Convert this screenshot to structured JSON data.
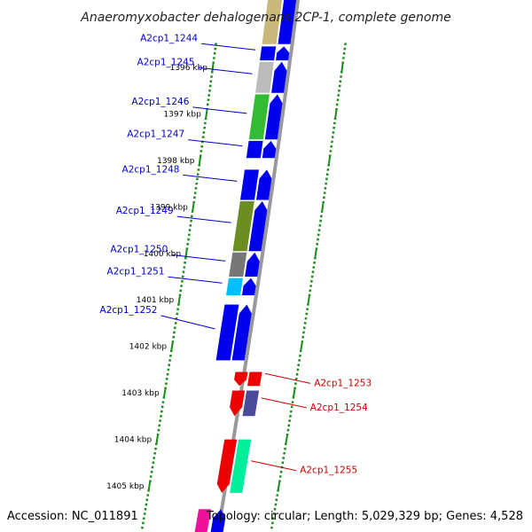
{
  "title": "Anaeromyxobacter dehalogenans 2CP-1, complete genome",
  "footer": {
    "accession": "Accession: NC_011891",
    "summary": "Topology: circular; Length: 5,029,329 bp; Genes: 4,528"
  },
  "colors": {
    "backbone": "#999999",
    "tick": "#1a8a1a",
    "forward_label": "#0000cc",
    "reverse_label": "#cc0000",
    "forward_gene": "#0000ee",
    "reverse_gene": "#ee0000"
  },
  "ticks": [
    {
      "label": "1396 kbp",
      "kbp": 1396
    },
    {
      "label": "1397 kbp",
      "kbp": 1397
    },
    {
      "label": "1398 kbp",
      "kbp": 1398
    },
    {
      "label": "1399 kbp",
      "kbp": 1399
    },
    {
      "label": "1400 kbp",
      "kbp": 1400
    },
    {
      "label": "1401 kbp",
      "kbp": 1401
    },
    {
      "label": "1402 kbp",
      "kbp": 1402
    },
    {
      "label": "1403 kbp",
      "kbp": 1403
    },
    {
      "label": "1404 kbp",
      "kbp": 1404
    },
    {
      "label": "1405 kbp",
      "kbp": 1405
    }
  ],
  "genes": [
    {
      "label": "A2cp1_1244",
      "strand": "forward",
      "start": 1395.55,
      "end": 1395.85,
      "cog_color": "#0000ee"
    },
    {
      "label": "A2cp1_1245",
      "strand": "forward",
      "start": 1395.88,
      "end": 1396.55,
      "cog_color": "#bbbbbb"
    },
    {
      "label": "A2cp1_1246",
      "strand": "forward",
      "start": 1396.58,
      "end": 1397.55,
      "cog_color": "#33bb33"
    },
    {
      "label": "A2cp1_1247",
      "strand": "forward",
      "start": 1397.58,
      "end": 1397.95,
      "cog_color": "#0000ee"
    },
    {
      "label": "A2cp1_1248",
      "strand": "forward",
      "start": 1398.2,
      "end": 1398.85,
      "cog_color": "#0000ee"
    },
    {
      "label": "A2cp1_1249",
      "strand": "forward",
      "start": 1398.88,
      "end": 1399.95,
      "cog_color": "#6b8e23"
    },
    {
      "label": "A2cp1_1250",
      "strand": "forward",
      "start": 1399.98,
      "end": 1400.5,
      "cog_color": "#777777"
    },
    {
      "label": "A2cp1_1251",
      "strand": "forward",
      "start": 1400.53,
      "end": 1400.9,
      "cog_color": "#00bfff"
    },
    {
      "label": "A2cp1_1252",
      "strand": "forward",
      "start": 1401.1,
      "end": 1402.3,
      "cog_color": "#0000ee"
    },
    {
      "label": "A2cp1_1253",
      "strand": "reverse",
      "start": 1402.55,
      "end": 1402.85,
      "cog_color": "#ee0000"
    },
    {
      "label": "A2cp1_1254",
      "strand": "reverse",
      "start": 1402.95,
      "end": 1403.5,
      "cog_color": "#4b4b9b"
    },
    {
      "label": "A2cp1_1255",
      "strand": "reverse",
      "start": 1404.0,
      "end": 1405.15,
      "cog_color": "#00ee99"
    }
  ],
  "partial_genes": [
    {
      "strand": "forward",
      "cog_color": "#c8b97a",
      "end": 1395.5
    },
    {
      "strand": "forward",
      "cog_color": "#0000ee",
      "end": 1395.5
    },
    {
      "strand": "reverse",
      "cog_color": "#ee1199",
      "start": 1405.5
    },
    {
      "strand": "reverse",
      "cog_color": "#0000ee",
      "start": 1405.5
    }
  ]
}
